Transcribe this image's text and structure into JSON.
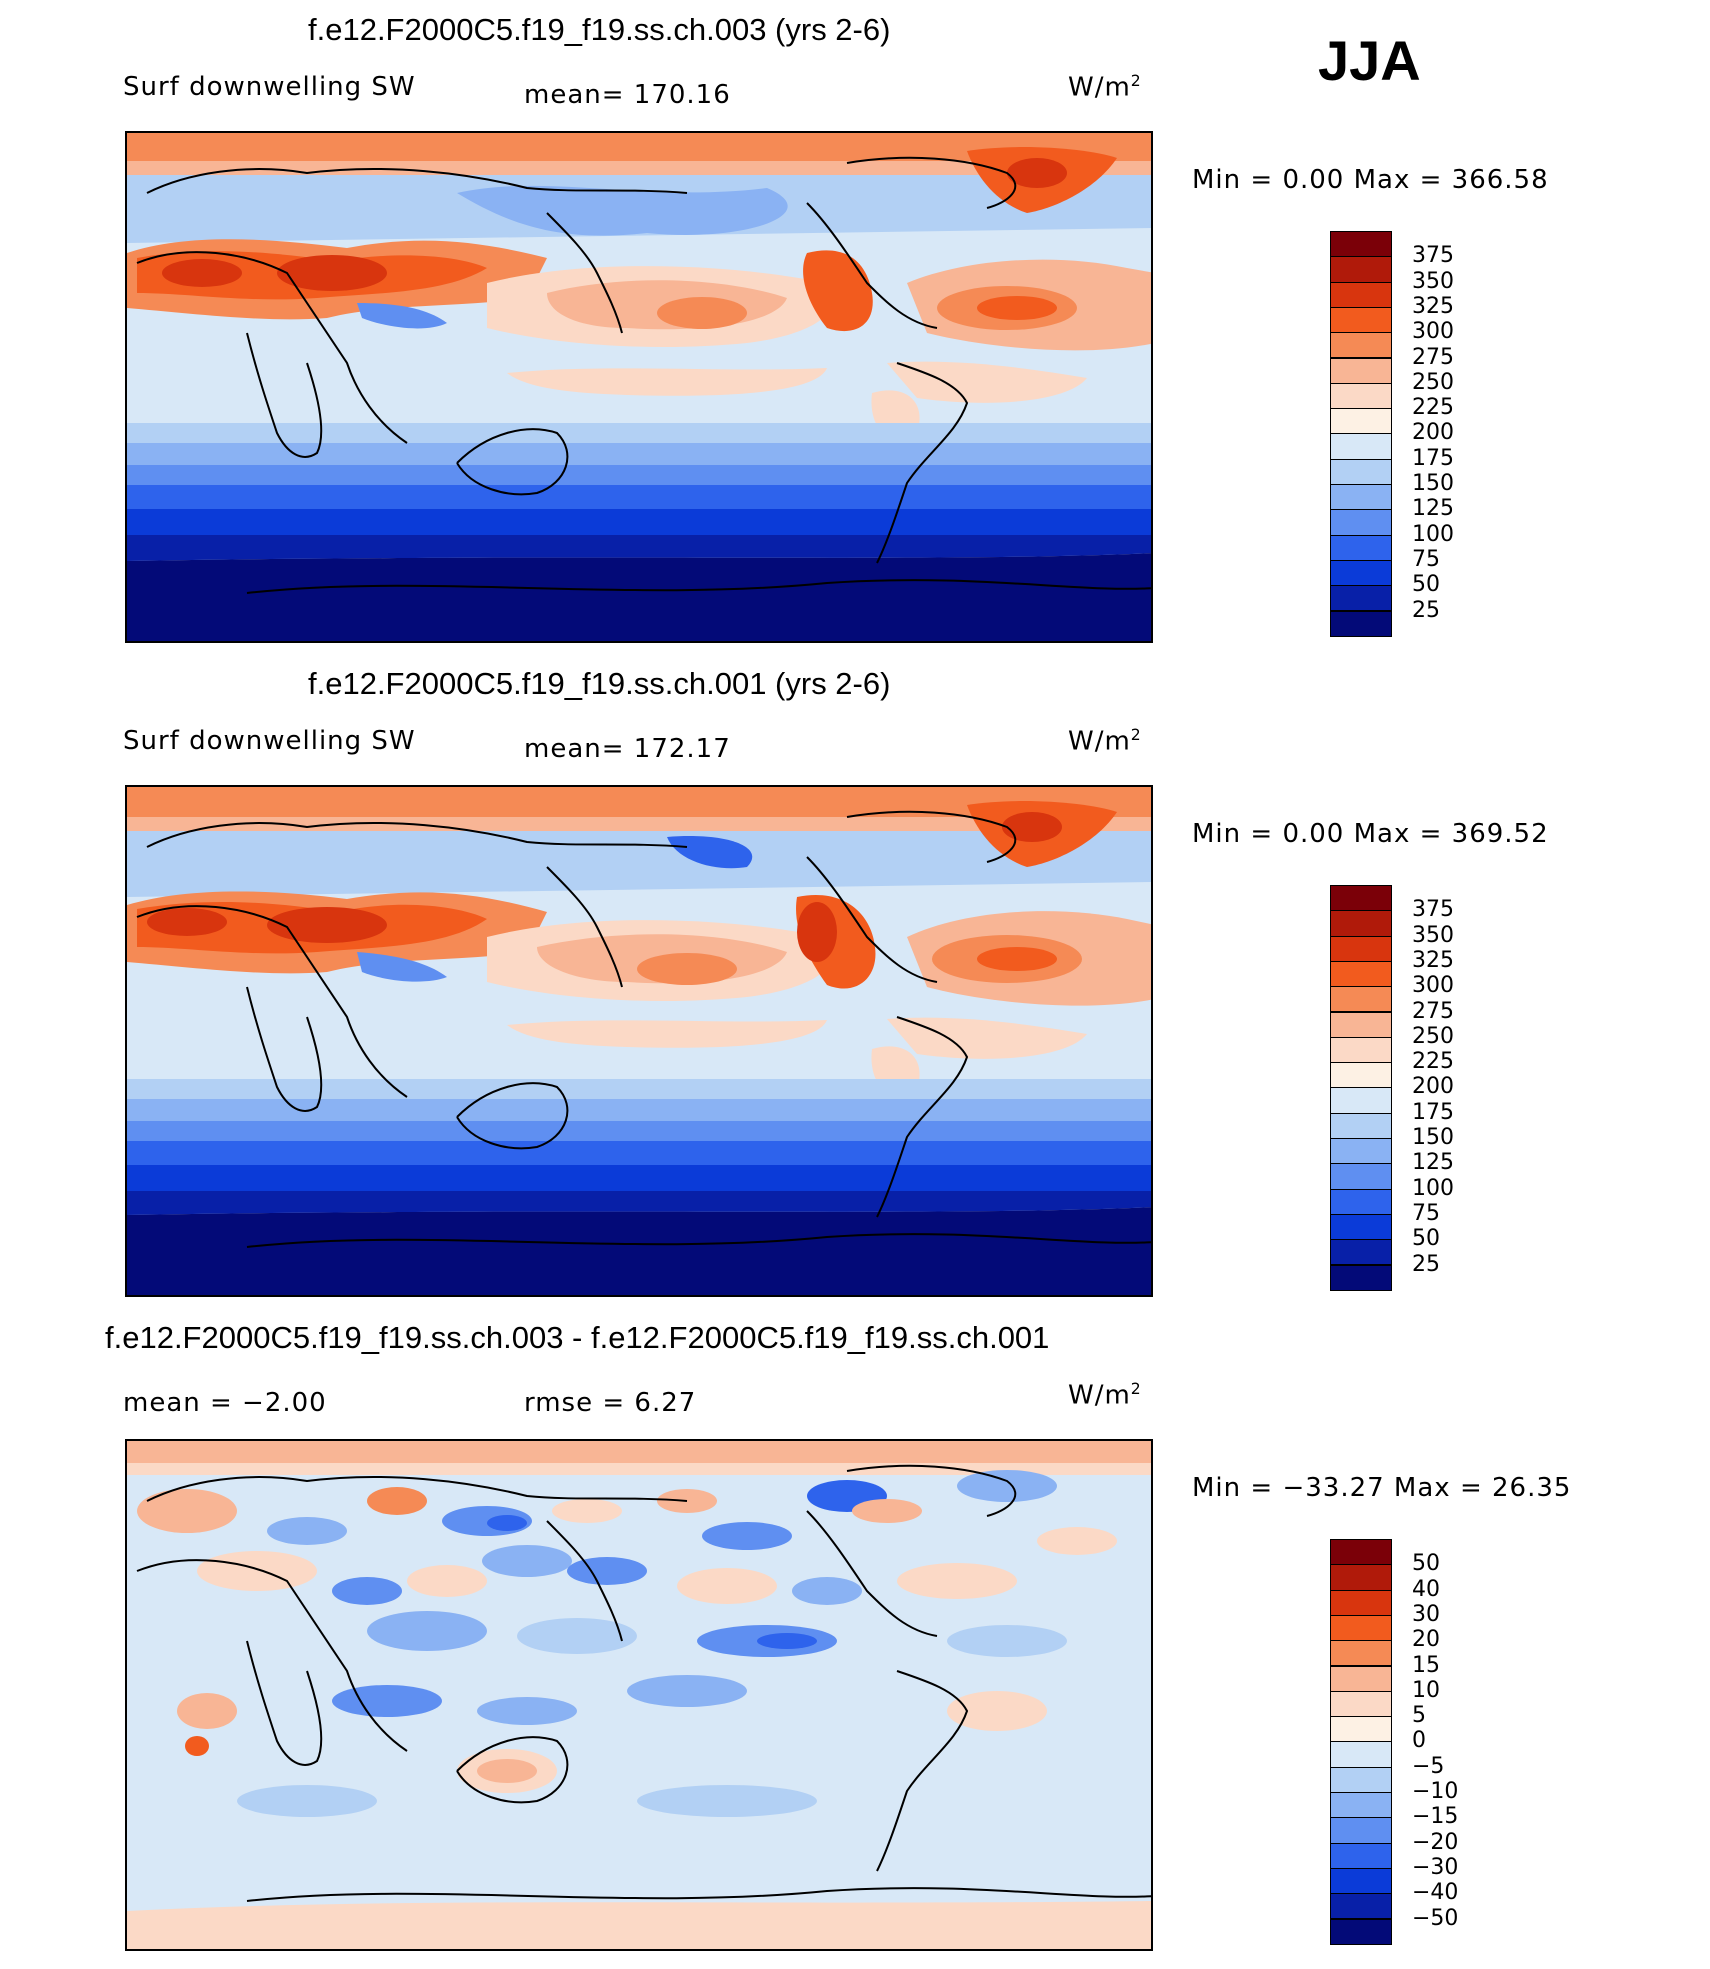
{
  "season": "JJA",
  "panels": [
    {
      "title": "f.e12.F2000C5.f19_f19.ss.ch.003 (yrs 2-6)",
      "left_label": "Surf  downwelling  SW",
      "mid_label": "mean=  170.16",
      "units": "W/m",
      "units_sup": "2",
      "minmax": "Min  =      0.00  Max  =  366.58",
      "colorbar": [
        "375",
        "350",
        "325",
        "300",
        "275",
        "250",
        "225",
        "200",
        "175",
        "150",
        "125",
        "100",
        "75",
        "50",
        "25"
      ],
      "colors": [
        "#7b0008",
        "#b01a0a",
        "#d8350e",
        "#f25b1e",
        "#f58a55",
        "#f8b595",
        "#fbd9c6",
        "#fdf1e4",
        "#d8e8f7",
        "#b2d0f4",
        "#8ab2f3",
        "#5f8ff1",
        "#2e63ec",
        "#0b3bd8",
        "#0820a8",
        "#030a78"
      ]
    },
    {
      "title": "f.e12.F2000C5.f19_f19.ss.ch.001 (yrs 2-6)",
      "left_label": "Surf  downwelling  SW",
      "mid_label": "mean=  172.17",
      "units": "W/m",
      "units_sup": "2",
      "minmax": "Min  =      0.00  Max  =  369.52",
      "colorbar": [
        "375",
        "350",
        "325",
        "300",
        "275",
        "250",
        "225",
        "200",
        "175",
        "150",
        "125",
        "100",
        "75",
        "50",
        "25"
      ],
      "colors": [
        "#7b0008",
        "#b01a0a",
        "#d8350e",
        "#f25b1e",
        "#f58a55",
        "#f8b595",
        "#fbd9c6",
        "#fdf1e4",
        "#d8e8f7",
        "#b2d0f4",
        "#8ab2f3",
        "#5f8ff1",
        "#2e63ec",
        "#0b3bd8",
        "#0820a8",
        "#030a78"
      ]
    },
    {
      "title": "f.e12.F2000C5.f19_f19.ss.ch.003 - f.e12.F2000C5.f19_f19.ss.ch.001",
      "left_label": "mean  =    −2.00",
      "mid_label": "rmse  =      6.27",
      "units": "W/m",
      "units_sup": "2",
      "minmax": "Min  =  −33.27  Max  =    26.35",
      "colorbar": [
        "50",
        "40",
        "30",
        "20",
        "15",
        "10",
        "5",
        "0",
        "−5",
        "−10",
        "−15",
        "−20",
        "−30",
        "−40",
        "−50"
      ],
      "colors": [
        "#7b0008",
        "#b01a0a",
        "#d8350e",
        "#f25b1e",
        "#f58a55",
        "#f8b595",
        "#fbd9c6",
        "#fdf1e4",
        "#d8e8f7",
        "#b2d0f4",
        "#8ab2f3",
        "#5f8ff1",
        "#2e63ec",
        "#0b3bd8",
        "#0820a8",
        "#030a78"
      ]
    }
  ]
}
